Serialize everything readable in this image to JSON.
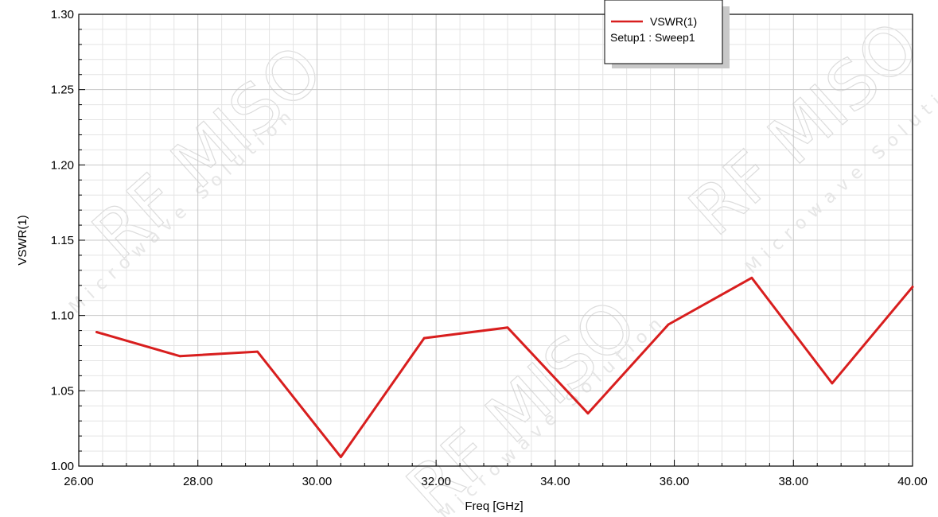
{
  "chart_data": {
    "type": "line",
    "title": "",
    "xlabel": "Freq [GHz]",
    "ylabel": "VSWR(1)",
    "xlim": [
      26.0,
      40.0
    ],
    "ylim": [
      1.0,
      1.3
    ],
    "xticks": [
      "26.00",
      "28.00",
      "30.00",
      "32.00",
      "34.00",
      "36.00",
      "38.00",
      "40.00"
    ],
    "yticks": [
      "1.00",
      "1.05",
      "1.10",
      "1.15",
      "1.20",
      "1.25",
      "1.30"
    ],
    "grid": true,
    "legend": {
      "placement": "top-center",
      "entry": "VSWR(1)",
      "subtitle": "Setup1 : Sweep1"
    },
    "series": [
      {
        "name": "VSWR(1)",
        "color": "#d81e1e",
        "x": [
          26.3,
          27.7,
          29.0,
          30.4,
          31.8,
          33.2,
          34.55,
          35.9,
          37.3,
          38.65,
          40.0
        ],
        "y": [
          1.089,
          1.073,
          1.076,
          1.006,
          1.085,
          1.092,
          1.035,
          1.094,
          1.125,
          1.055,
          1.119
        ]
      }
    ]
  },
  "watermark": {
    "brand": "RF MISO",
    "tagline": "Microwave Solution"
  }
}
